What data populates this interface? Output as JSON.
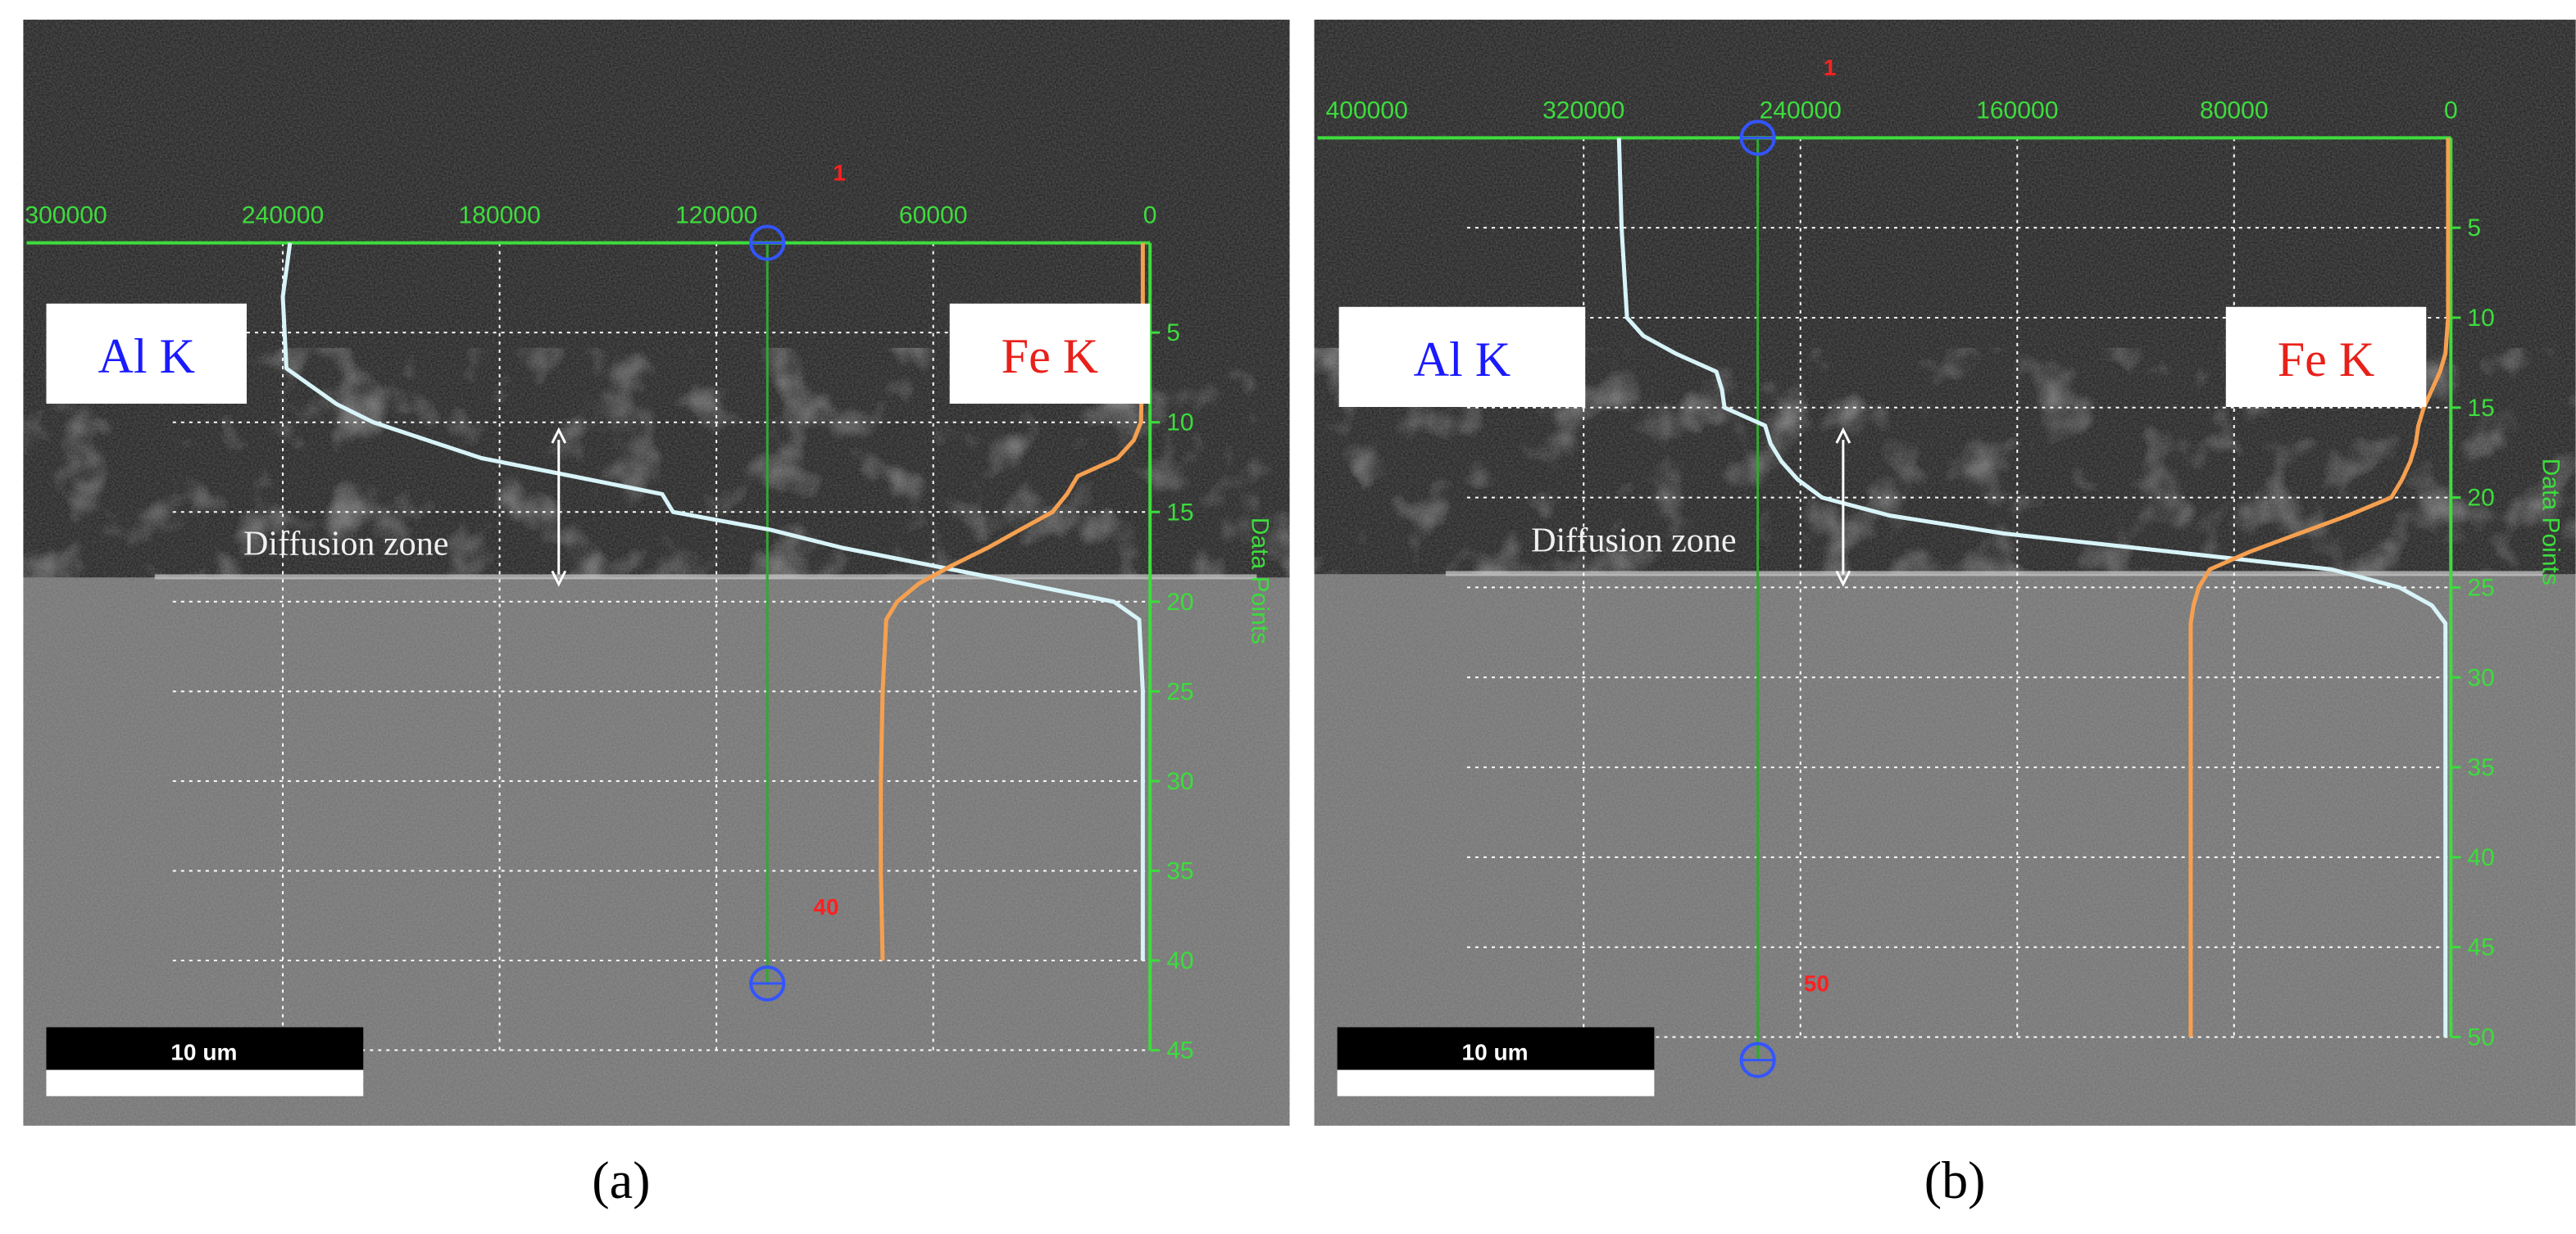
{
  "chart_data": [
    {
      "type": "line",
      "panel_label": "(a)",
      "x_label": null,
      "y_label": "Data Points",
      "xlim": [
        300000,
        0
      ],
      "xticks": [
        300000,
        240000,
        180000,
        120000,
        60000,
        0
      ],
      "ylim": [
        0,
        45
      ],
      "yticks": [
        5,
        10,
        15,
        20,
        25,
        30,
        35,
        40,
        45
      ],
      "start_marker": "1",
      "end_marker": "40",
      "annotation": "Diffusion zone",
      "scale_bar": "10 um",
      "points": [
        0,
        3,
        7,
        8,
        9,
        10,
        11,
        12,
        13,
        14,
        15,
        16,
        17,
        18,
        19,
        20,
        21,
        25,
        30,
        35,
        40
      ],
      "series": [
        {
          "name": "Al K",
          "color": "#d8f4f8",
          "text_color": "#1a1aff",
          "values": [
            238000,
            240000,
            239000,
            232000,
            225000,
            215000,
            200000,
            185000,
            160000,
            135000,
            132000,
            105000,
            85000,
            60000,
            35000,
            10000,
            3000,
            2000,
            2000,
            2000,
            2000
          ]
        },
        {
          "name": "Fe K",
          "color": "#f5a050",
          "text_color": "#e8201a",
          "values": [
            2000,
            2000,
            2000,
            2200,
            2400,
            2500,
            4500,
            9000,
            20000,
            23000,
            27000,
            36000,
            45000,
            55000,
            64000,
            70000,
            73000,
            74000,
            74500,
            74500,
            74000
          ]
        }
      ]
    },
    {
      "type": "line",
      "panel_label": "(b)",
      "x_label": null,
      "y_label": "Data Points",
      "xlim": [
        400000,
        0
      ],
      "xticks": [
        400000,
        320000,
        240000,
        160000,
        80000,
        0
      ],
      "ylim": [
        0,
        50
      ],
      "yticks": [
        5,
        10,
        15,
        20,
        25,
        30,
        35,
        40,
        45,
        50
      ],
      "start_marker": "1",
      "end_marker": "50",
      "annotation": "Diffusion zone",
      "scale_bar": "10 um",
      "points": [
        0,
        5,
        10,
        11,
        12,
        13,
        14,
        15,
        16,
        17,
        18,
        19,
        20,
        21,
        22,
        23,
        24,
        25,
        26,
        27,
        30,
        40,
        50
      ],
      "series": [
        {
          "name": "Al K",
          "color": "#d8f4f8",
          "text_color": "#1a1aff",
          "values": [
            307000,
            306000,
            304000,
            298000,
            286000,
            271000,
            269000,
            268000,
            253000,
            251000,
            247000,
            241000,
            232000,
            207000,
            165000,
            104000,
            44000,
            19000,
            7000,
            2000,
            2000,
            2000,
            2000
          ]
        },
        {
          "name": "Fe K",
          "color": "#f5a050",
          "text_color": "#e8201a",
          "values": [
            1000,
            1000,
            1000,
            1500,
            2000,
            4000,
            7000,
            10000,
            12000,
            13000,
            15000,
            18000,
            22000,
            38000,
            56000,
            74000,
            89000,
            93000,
            95000,
            96000,
            96000,
            96000,
            96000
          ]
        }
      ]
    }
  ]
}
